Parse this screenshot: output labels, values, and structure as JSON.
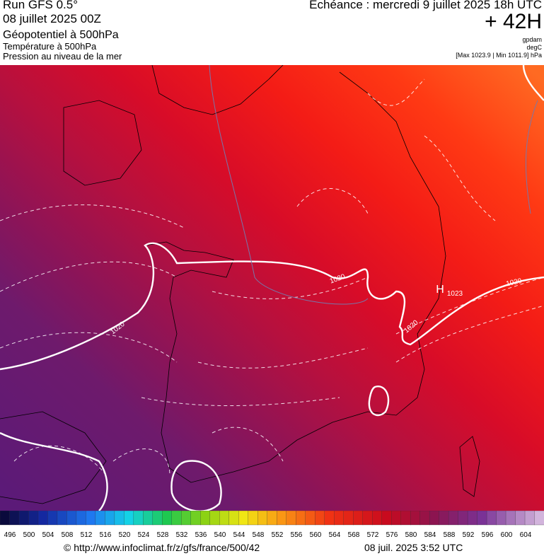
{
  "header": {
    "model": "Run GFS 0.5°",
    "run_date": "08 juillet 2025 00Z",
    "field_1": "Géopotentiel à 500hPa",
    "field_2": "Température à 500hPa",
    "field_3": "Pression au niveau de la mer",
    "valid_time": "Echéance : mercredi 9 juillet 2025 18h UTC",
    "lead": "+ 42H",
    "unit_1": "gpdam",
    "unit_2": "degC",
    "range": "[Max 1023.9 | Min 1011.9] hPa"
  },
  "map": {
    "labels": [
      "1020",
      "1020",
      "1020",
      "1020",
      "H",
      "1023"
    ]
  },
  "colorbar": {
    "labels": [
      496,
      500,
      504,
      508,
      512,
      516,
      520,
      524,
      528,
      532,
      536,
      540,
      544,
      548,
      552,
      556,
      560,
      564,
      568,
      572,
      576,
      580,
      584,
      588,
      592,
      596,
      600,
      604
    ]
  },
  "footer": {
    "source": "© http://www.infoclimat.fr/z/gfs/france/500/42",
    "generated": "08 juil. 2025  3:52 UTC"
  }
}
